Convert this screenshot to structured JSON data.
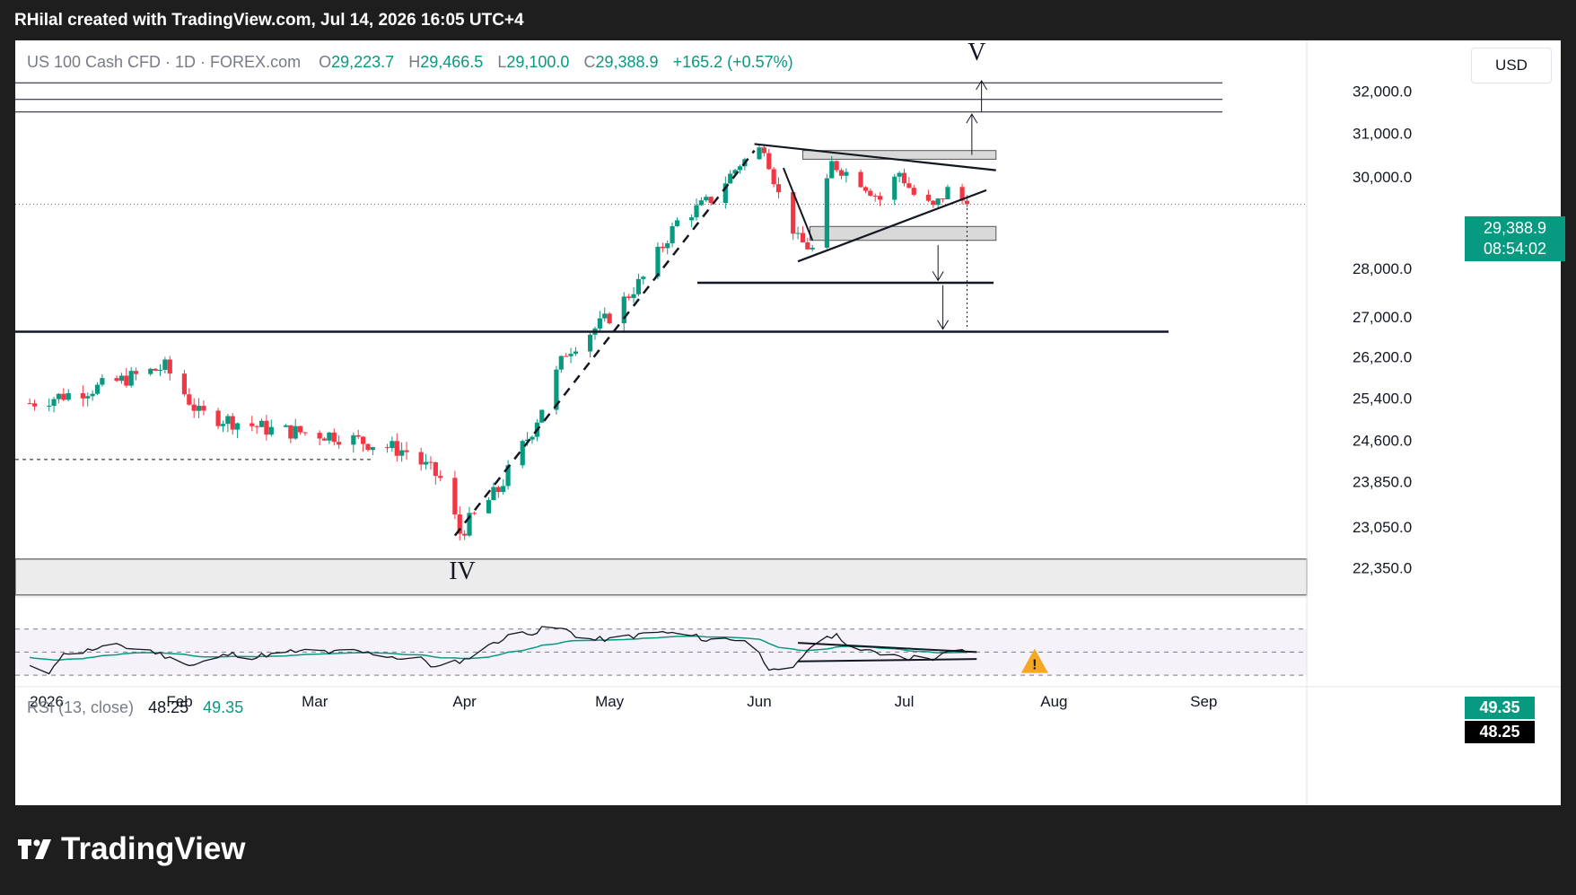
{
  "header": {
    "caption": "RHilal created with TradingView.com, Jul 14, 2026 16:05 UTC+4"
  },
  "legend": {
    "symbol": "US 100 Cash CFD · 1D · FOREX.com",
    "o_label": "O",
    "o_value": "29,223.7",
    "h_label": "H",
    "h_value": "29,466.5",
    "l_label": "L",
    "l_value": "29,100.0",
    "c_label": "C",
    "c_value": "29,388.9",
    "change": "+165.2 (+0.57%)"
  },
  "currency": "USD",
  "price_tag": {
    "price": "29,388.9",
    "countdown": "08:54:02"
  },
  "rsi": {
    "label": "RSI (13, close)",
    "value_rsi": "48.25",
    "value_ma": "49.35",
    "tag_ma": "49.35",
    "tag_rsi": "48.25"
  },
  "wave_labels": {
    "iv": "IV",
    "v": "V"
  },
  "brand": "TradingView",
  "colors": {
    "up": "#089981",
    "down": "#f23645",
    "bg": "#ffffff",
    "frame": "#1e1e1e",
    "rsi_ma": "#089981",
    "rsi_line": "#131722",
    "warning": "#f5a623"
  },
  "chart_data": {
    "type": "candlestick",
    "title": "US 100 Cash CFD · 1D · FOREX.com",
    "x_ticks": [
      "2026",
      "Feb",
      "Mar",
      "Apr",
      "May",
      "Jun",
      "Jul",
      "Aug",
      "Sep"
    ],
    "y_ticks": [
      "32,000.0",
      "31,000.0",
      "30,000.0",
      "28,000.0",
      "27,000.0",
      "26,200.0",
      "25,400.0",
      "24,600.0",
      "23,850.0",
      "23,050.0",
      "22,350.0"
    ],
    "y_scale": "log",
    "ylim": [
      22000,
      32600
    ],
    "last_price": 29388.9,
    "series_path": [
      [
        "2026-01-01",
        25300
      ],
      [
        "2026-01-15",
        25600
      ],
      [
        "2026-01-29",
        26000
      ],
      [
        "2026-02-05",
        25100
      ],
      [
        "2026-02-20",
        24800
      ],
      [
        "2026-03-05",
        24700
      ],
      [
        "2026-03-20",
        24400
      ],
      [
        "2026-03-27",
        23900
      ],
      [
        "2026-03-31",
        22950
      ],
      [
        "2026-04-08",
        23700
      ],
      [
        "2026-04-15",
        24800
      ],
      [
        "2026-04-22",
        26300
      ],
      [
        "2026-05-01",
        27000
      ],
      [
        "2026-05-08",
        27800
      ],
      [
        "2026-05-15",
        29000
      ],
      [
        "2026-05-22",
        29500
      ],
      [
        "2026-05-28",
        30300
      ],
      [
        "2026-06-02",
        30700
      ],
      [
        "2026-06-05",
        29600
      ],
      [
        "2026-06-09",
        28600
      ],
      [
        "2026-06-12",
        28400
      ],
      [
        "2026-06-16",
        30300
      ],
      [
        "2026-06-22",
        29900
      ],
      [
        "2026-06-26",
        29500
      ],
      [
        "2026-06-30",
        30100
      ],
      [
        "2026-07-03",
        29600
      ],
      [
        "2026-07-07",
        29300
      ],
      [
        "2026-07-10",
        29700
      ],
      [
        "2026-07-14",
        29389
      ]
    ],
    "horizontal_levels": [
      32200,
      31800,
      31500,
      30500,
      28900,
      27700,
      26700,
      24250
    ],
    "rsi_ylim": [
      20,
      90
    ],
    "rsi_bands": [
      30,
      50,
      70
    ],
    "annotations": [
      "IV",
      "V"
    ]
  }
}
